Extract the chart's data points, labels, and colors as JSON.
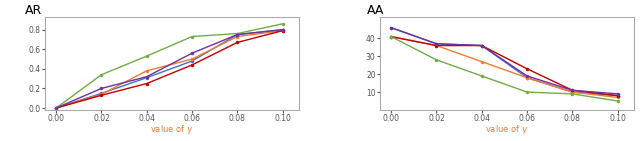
{
  "x": [
    0.0,
    0.02,
    0.04,
    0.06,
    0.08,
    0.1
  ],
  "ar_lines": {
    "blue": [
      0.0,
      0.15,
      0.31,
      0.48,
      0.75,
      0.8
    ],
    "orange": [
      0.0,
      0.14,
      0.38,
      0.5,
      0.73,
      0.79
    ],
    "red": [
      0.0,
      0.13,
      0.25,
      0.44,
      0.67,
      0.79
    ],
    "green": [
      0.0,
      0.34,
      0.53,
      0.73,
      0.76,
      0.86
    ],
    "purple": [
      0.0,
      0.2,
      0.32,
      0.56,
      0.75,
      0.8
    ]
  },
  "aa_lines": {
    "blue": [
      46,
      37,
      36,
      18,
      10,
      8
    ],
    "orange": [
      41,
      36,
      27,
      18,
      10,
      7
    ],
    "red": [
      41,
      36,
      36,
      23,
      11,
      8
    ],
    "green": [
      41,
      28,
      19,
      10,
      9,
      5
    ],
    "purple": [
      46,
      37,
      36,
      19,
      11,
      9
    ]
  },
  "colors": {
    "blue": "#4472c4",
    "orange": "#ed7d31",
    "red": "#c00000",
    "green": "#70ad47",
    "purple": "#7030a0"
  },
  "ar_title": "AR",
  "aa_title": "AA",
  "xlabel": "value of $\\gamma$",
  "ar_ylim": [
    -0.02,
    0.93
  ],
  "aa_ylim": [
    0,
    52
  ],
  "ar_yticks": [
    0.0,
    0.2,
    0.4,
    0.6,
    0.8
  ],
  "aa_yticks": [
    10,
    20,
    30,
    40
  ],
  "xticks": [
    0.0,
    0.02,
    0.04,
    0.06,
    0.08,
    0.1
  ],
  "marker": "o",
  "markersize": 2.5,
  "linewidth": 1.0,
  "title_fontsize": 9,
  "tick_fontsize": 5.5,
  "xlabel_fontsize": 6,
  "spine_color": "#aaaaaa",
  "background_color": "#ffffff",
  "plot_bg_color": "#ffffff"
}
